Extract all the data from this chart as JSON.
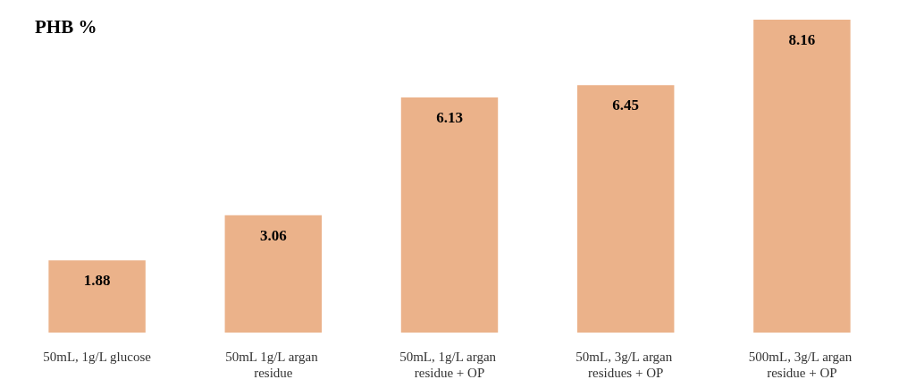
{
  "chart_data": {
    "type": "bar",
    "title": "PHB %",
    "categories": [
      "50mL, 1g/L glucose",
      "50mL 1g/L argan residue",
      "50mL, 1g/L argan residue + OP",
      "50mL, 3g/L argan residues + OP",
      "500mL, 3g/L argan residue + OP"
    ],
    "values": [
      1.88,
      3.06,
      6.13,
      6.45,
      8.16
    ],
    "color": "#ebb28a",
    "data_labels": true,
    "tick_labels": "x"
  }
}
